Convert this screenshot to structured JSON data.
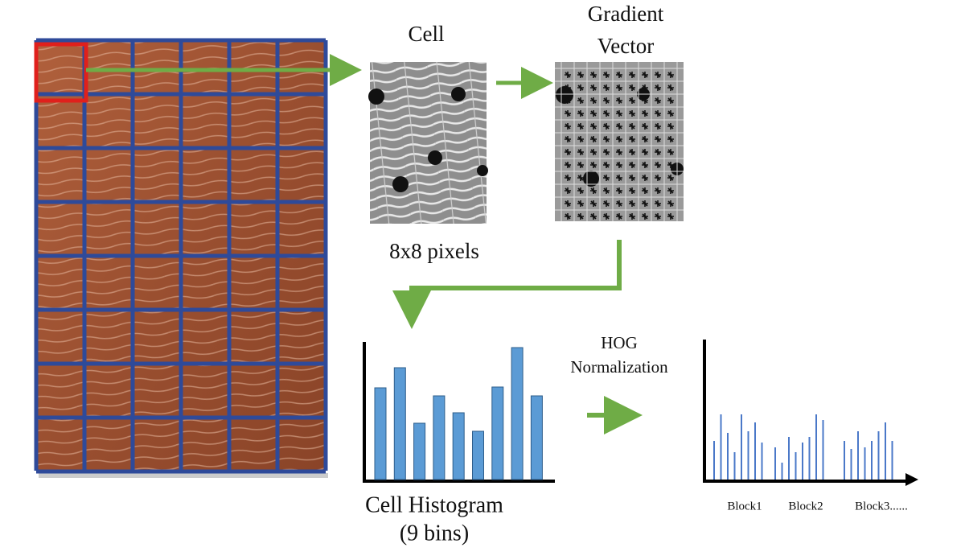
{
  "cell_image": {
    "title": "Cell",
    "caption": "8x8 pixels"
  },
  "gradient_image": {
    "title": [
      "Gradient",
      "Vector"
    ]
  },
  "cell_histogram": {
    "title": "Cell Histogram",
    "subtitle": "(9 bins)"
  },
  "normalization": {
    "label": [
      "HOG",
      "Normalization"
    ]
  },
  "hog_output": {
    "blocks": [
      "Block1",
      "Block2",
      "Block3......"
    ]
  }
}
